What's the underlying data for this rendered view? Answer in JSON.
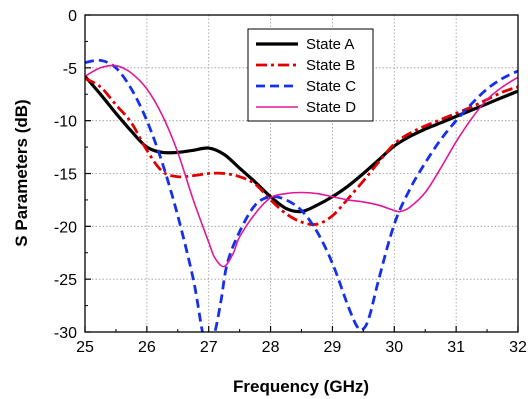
{
  "chart_data": {
    "type": "line",
    "title": "",
    "xlabel": "Frequency (GHz)",
    "ylabel": "S Parameters (dB)",
    "xlim": [
      25,
      32
    ],
    "ylim": [
      -30,
      0
    ],
    "xticks": [
      25,
      26,
      27,
      28,
      29,
      30,
      31,
      32
    ],
    "yticks": [
      0,
      -5,
      -10,
      -15,
      -20,
      -25,
      -30
    ],
    "grid": true,
    "legend_position": "top-right",
    "series": [
      {
        "name": "State A",
        "color": "#000000",
        "dash": "solid",
        "x": [
          25,
          25.25,
          25.5,
          25.75,
          26,
          26.25,
          26.5,
          26.75,
          27,
          27.25,
          27.5,
          27.75,
          28,
          28.25,
          28.5,
          28.75,
          29,
          29.25,
          29.5,
          29.75,
          30,
          30.25,
          30.5,
          30.75,
          31,
          31.25,
          31.5,
          31.75,
          32
        ],
        "y": [
          -5.8,
          -7.5,
          -9.3,
          -11.0,
          -12.5,
          -13.0,
          -13.0,
          -12.8,
          -12.6,
          -13.2,
          -14.5,
          -15.8,
          -17.2,
          -18.3,
          -18.6,
          -18.0,
          -17.2,
          -16.2,
          -15.0,
          -13.7,
          -12.4,
          -11.5,
          -10.8,
          -10.2,
          -9.6,
          -9.0,
          -8.4,
          -7.8,
          -7.2
        ]
      },
      {
        "name": "State B",
        "color": "#e00000",
        "dash": "dashdot",
        "x": [
          25,
          25.25,
          25.5,
          25.75,
          26,
          26.25,
          26.5,
          26.75,
          27,
          27.25,
          27.5,
          27.75,
          28,
          28.25,
          28.5,
          28.75,
          29,
          29.25,
          29.5,
          29.75,
          30,
          30.25,
          30.5,
          30.75,
          31,
          31.25,
          31.5,
          31.75,
          32
        ],
        "y": [
          -6.0,
          -6.8,
          -8.5,
          -10.2,
          -12.8,
          -14.8,
          -15.3,
          -15.2,
          -15.0,
          -15.0,
          -15.3,
          -16.0,
          -17.5,
          -18.8,
          -19.6,
          -19.8,
          -19.0,
          -17.4,
          -15.7,
          -13.9,
          -12.2,
          -11.2,
          -10.5,
          -9.9,
          -9.3,
          -8.7,
          -8.0,
          -7.3,
          -6.8
        ]
      },
      {
        "name": "State C",
        "color": "#1530e8",
        "dash": "dash",
        "x": [
          25,
          25.25,
          25.5,
          25.75,
          26,
          26.25,
          26.5,
          26.75,
          26.9,
          27.0,
          27.1,
          27.2,
          27.3,
          27.5,
          27.75,
          28,
          28.25,
          28.5,
          28.75,
          29,
          29.25,
          29.4,
          29.5,
          29.6,
          29.75,
          30,
          30.25,
          30.5,
          30.75,
          31,
          31.25,
          31.5,
          31.75,
          32
        ],
        "y": [
          -4.5,
          -4.3,
          -5.0,
          -7.0,
          -10.0,
          -14.0,
          -19.0,
          -25.0,
          -30.0,
          -31.5,
          -30.0,
          -27.0,
          -23.5,
          -20.5,
          -18.0,
          -17.2,
          -17.5,
          -18.5,
          -20.5,
          -23.5,
          -27.5,
          -29.5,
          -29.7,
          -28.5,
          -25.0,
          -19.8,
          -16.5,
          -14.0,
          -11.8,
          -10.0,
          -8.4,
          -7.0,
          -6.0,
          -5.3
        ]
      },
      {
        "name": "State D",
        "color": "#e0189a",
        "dash": "solid",
        "x": [
          25,
          25.25,
          25.5,
          25.75,
          26,
          26.25,
          26.5,
          26.75,
          27,
          27.1,
          27.25,
          27.4,
          27.5,
          27.75,
          28,
          28.25,
          28.5,
          28.75,
          29,
          29.25,
          29.5,
          29.75,
          30,
          30.1,
          30.25,
          30.5,
          30.75,
          31,
          31.25,
          31.5,
          31.75,
          32
        ],
        "y": [
          -5.8,
          -5.0,
          -4.8,
          -5.5,
          -7.0,
          -9.5,
          -13.0,
          -17.5,
          -21.5,
          -23.0,
          -23.8,
          -22.5,
          -21.0,
          -18.8,
          -17.3,
          -16.9,
          -16.8,
          -16.9,
          -17.2,
          -17.5,
          -17.7,
          -18.0,
          -18.5,
          -18.6,
          -18.2,
          -16.8,
          -14.5,
          -12.0,
          -9.8,
          -8.0,
          -6.8,
          -5.9
        ]
      }
    ]
  }
}
